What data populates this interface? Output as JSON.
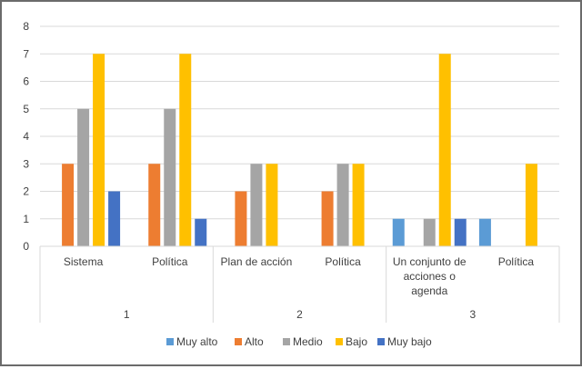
{
  "chart_data": {
    "type": "bar",
    "title": "",
    "xlabel": "",
    "ylabel": "",
    "ylim": [
      0,
      8
    ],
    "yticks": [
      "0",
      "1",
      "2",
      "3",
      "4",
      "5",
      "6",
      "7",
      "8"
    ],
    "grid": true,
    "legend_position": "bottom",
    "groups": [
      {
        "label": "1",
        "categories": [
          "Sistema",
          "Política"
        ]
      },
      {
        "label": "2",
        "categories": [
          "Plan de acción",
          "Política"
        ]
      },
      {
        "label": "3",
        "categories": [
          "Un conjunto de acciones o agenda",
          "Política"
        ]
      }
    ],
    "categories": [
      "Sistema",
      "Política",
      "Plan de acción",
      "Política",
      "Un conjunto de acciones o agenda",
      "Política"
    ],
    "category_label_lines": [
      [
        "Sistema"
      ],
      [
        "Política"
      ],
      [
        "Plan de acción"
      ],
      [
        "Política"
      ],
      [
        "Un conjunto de",
        "acciones o",
        "agenda"
      ],
      [
        "Política"
      ]
    ],
    "series": [
      {
        "name": "Muy alto",
        "color": "#5B9BD5",
        "values": [
          0,
          0,
          0,
          0,
          1,
          1
        ]
      },
      {
        "name": "Alto",
        "color": "#ED7D31",
        "values": [
          3,
          3,
          2,
          2,
          0,
          0
        ]
      },
      {
        "name": "Medio",
        "color": "#A5A5A5",
        "values": [
          5,
          5,
          3,
          3,
          1,
          0
        ]
      },
      {
        "name": "Bajo",
        "color": "#FFC000",
        "values": [
          7,
          7,
          3,
          3,
          7,
          3
        ]
      },
      {
        "name": "Muy bajo",
        "color": "#4472C4",
        "values": [
          2,
          1,
          0,
          0,
          1,
          0
        ]
      }
    ]
  }
}
